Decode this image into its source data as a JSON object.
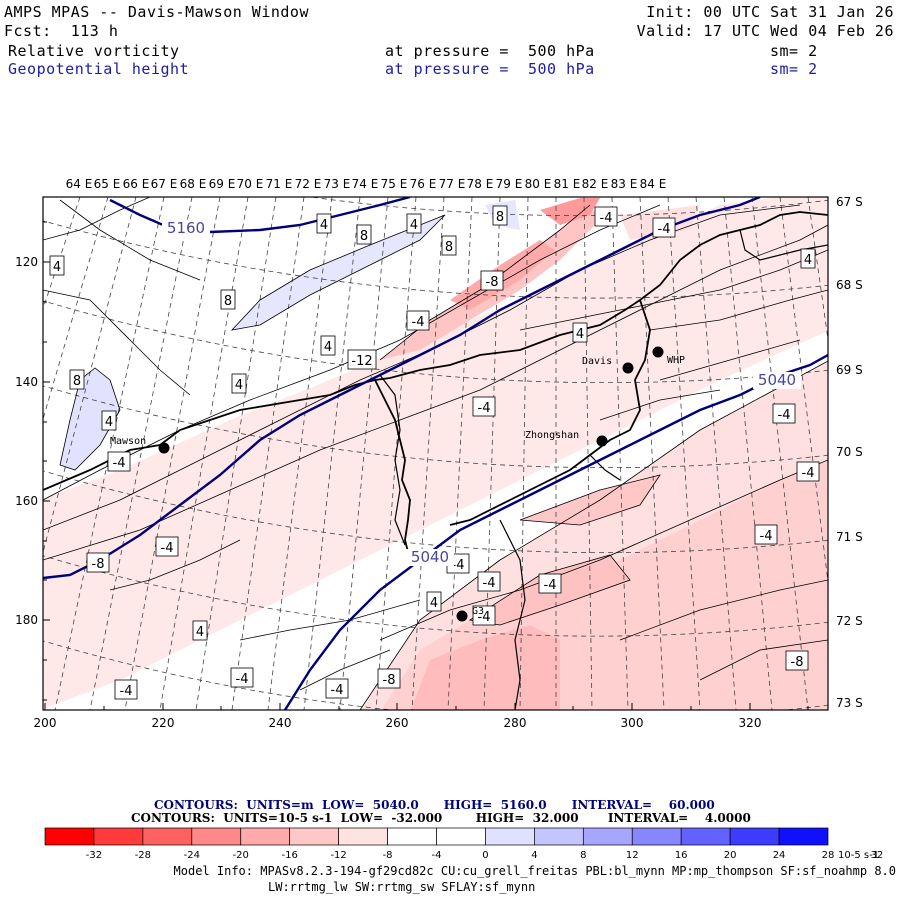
{
  "header": {
    "title": "AMPS MPAS -- Davis-Mawson Window",
    "forecast": "Fcst:  113 h",
    "init": "Init: 00 UTC Sat 31 Jan 26",
    "valid": "Valid: 17 UTC Wed 04 Feb 26",
    "field1_name": "Relative vorticity",
    "field1_level": "at pressure =  500 hPa",
    "field1_smooth": "sm= 2",
    "field2_name": "Geopotential height",
    "field2_level": "at pressure =  500 hPa",
    "field2_smooth": "sm= 2"
  },
  "map": {
    "top_lon_labels": [
      "64 E",
      "65 E",
      "66 E",
      "67 E",
      "68 E",
      "69 E",
      "70 E",
      "71 E",
      "72 E",
      "73 E",
      "74 E",
      "75 E",
      "76 E",
      "77 E",
      "78 E",
      "79 E",
      "80 E",
      "81 E",
      "82 E",
      "83 E",
      "84 E"
    ],
    "right_lat_labels": [
      "67 S",
      "68 S",
      "69 S",
      "70 S",
      "71 S",
      "72 S",
      "73 S"
    ],
    "left_y_ticks": [
      "120",
      "140",
      "160",
      "180"
    ],
    "bottom_x_ticks": [
      "200",
      "220",
      "240",
      "260",
      "280",
      "300",
      "320"
    ],
    "stations": [
      {
        "name": "Mawson",
        "icon": "station-dot-icon"
      },
      {
        "name": "Davis",
        "icon": "station-dot-icon"
      },
      {
        "name": "WHP",
        "icon": "station-dot-icon"
      },
      {
        "name": "Zhongshan",
        "icon": "station-dot-icon"
      },
      {
        "name": "G3",
        "icon": "station-dot-icon"
      }
    ],
    "height_contour_labels": [
      "5160",
      "5040",
      "5040"
    ],
    "vorticity_labels": [
      "4",
      "8",
      "-4",
      "-8",
      "-12",
      "4",
      "8",
      "4",
      "-4",
      "4",
      "4",
      "8",
      "4",
      "8",
      "8",
      "-4",
      "-4",
      "4",
      "-4",
      "-4",
      "-4",
      "-4",
      "-4",
      "-8",
      "-4",
      "-4",
      "-4",
      "4",
      "-4",
      "4",
      "-4",
      "-8",
      "-4",
      "-8",
      "-4",
      "4"
    ]
  },
  "legend": {
    "height_line": "CONTOURS:  UNITS=m  LOW=  5040.0      HIGH=  5160.0      INTERVAL=    60.000",
    "vort_line": "CONTOURS:  UNITS=10-5 s-1  LOW=  -32.000        HIGH=  32.000       INTERVAL=    4.0000"
  },
  "colorbar": {
    "colors": [
      "#ff0000",
      "#ff3a3a",
      "#ff6060",
      "#ff8888",
      "#ffaaaa",
      "#ffc8c8",
      "#ffe2e2",
      "#ffffff",
      "#ffffff",
      "#e0e0ff",
      "#c4c4ff",
      "#a6a6ff",
      "#8686ff",
      "#6262ff",
      "#3c3cff",
      "#1010ff"
    ],
    "tick_labels": [
      "-32",
      "-28",
      "-24",
      "-20",
      "-16",
      "-12",
      "-8",
      "-4",
      "0",
      "4",
      "8",
      "12",
      "16",
      "20",
      "24",
      "28",
      "32"
    ],
    "units": "10-5 s-1"
  },
  "footer": {
    "line1": "Model Info: MPASv8.2.3-194-gf29cd82c CU:cu_grell_freitas PBL:bl_mynn MP:mp_thompson SF:sf_noahmp 8.0",
    "line2": "LW:rrtmg_lw SW:rrtmg_sw SFLAY:sf_mynn"
  }
}
